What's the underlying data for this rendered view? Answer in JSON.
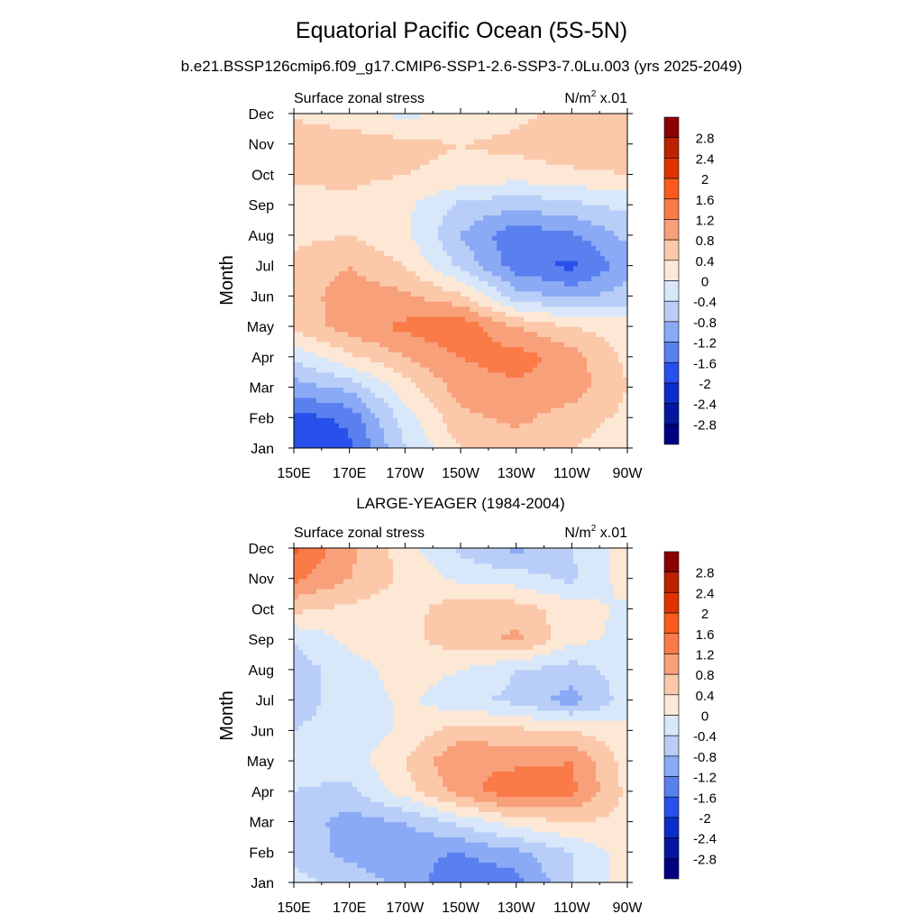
{
  "figure": {
    "title": "Equatorial Pacific Ocean (5S-5N)",
    "subtitle": "b.e21.BSSP126cmip6.f09_g17.CMIP6-SSP1-2.6-SSP3-7.0Lu.003 (yrs 2025-2049)"
  },
  "colorbar": {
    "levels": [
      "2.8",
      "2.4",
      "2",
      "1.6",
      "1.2",
      "0.8",
      "0.4",
      "0",
      "-0.4",
      "-0.8",
      "-1.2",
      "-1.6",
      "-2",
      "-2.4",
      "-2.8"
    ],
    "colors": [
      "#8b0000",
      "#bb2200",
      "#e03400",
      "#fa5a1e",
      "#fa7a48",
      "#f8a07a",
      "#fbc8aa",
      "#fde8d6",
      "#d8e8fa",
      "#b8cef8",
      "#8aaaf5",
      "#5a80f0",
      "#2850ea",
      "#0c2ec8",
      "#03189e",
      "#000080"
    ]
  },
  "chart_data": [
    {
      "type": "heatmap",
      "panel_title": "",
      "left_label": "Surface zonal stress",
      "right_label_base": "N/m",
      "right_label_sup": "2",
      "right_label_rest": " x.01",
      "ylabel": "Month",
      "x_tick_labels": [
        "150E",
        "170E",
        "170W",
        "150W",
        "130W",
        "110W",
        "90W"
      ],
      "y_tick_labels": [
        "Jan",
        "Feb",
        "Mar",
        "Apr",
        "May",
        "Jun",
        "Jul",
        "Aug",
        "Sep",
        "Oct",
        "Nov",
        "Dec"
      ],
      "x_range_deg_east": [
        150,
        270
      ],
      "y_range_month": [
        1,
        12
      ],
      "longitudes": [
        150,
        170,
        190,
        210,
        230,
        250,
        270
      ],
      "months": [
        "Jan",
        "Feb",
        "Mar",
        "Apr",
        "May",
        "Jun",
        "Jul",
        "Aug",
        "Sep",
        "Oct",
        "Nov",
        "Dec"
      ],
      "values": [
        [
          -2.0,
          -1.7,
          -0.4,
          0.4,
          0.6,
          0.4,
          0.2
        ],
        [
          -1.8,
          -1.5,
          -0.2,
          0.7,
          0.9,
          0.6,
          0.3
        ],
        [
          -1.0,
          -0.7,
          0.2,
          1.0,
          1.1,
          1.0,
          0.4
        ],
        [
          -0.3,
          0.3,
          0.8,
          1.2,
          1.4,
          1.0,
          0.3
        ],
        [
          0.5,
          1.0,
          1.3,
          1.5,
          0.8,
          0.4,
          0.2
        ],
        [
          0.6,
          1.0,
          0.9,
          0.5,
          -0.6,
          -0.9,
          -0.6
        ],
        [
          0.5,
          0.8,
          0.4,
          -0.5,
          -1.4,
          -1.7,
          -1.0
        ],
        [
          0.3,
          0.4,
          0.1,
          -0.8,
          -1.5,
          -1.3,
          -0.7
        ],
        [
          0.2,
          0.3,
          0.1,
          -0.5,
          -0.7,
          -0.5,
          -0.3
        ],
        [
          0.5,
          0.5,
          0.4,
          0.3,
          0.2,
          0.3,
          0.4
        ],
        [
          0.8,
          0.7,
          0.5,
          0.4,
          0.5,
          0.7,
          0.7
        ],
        [
          0.3,
          0.1,
          -0.1,
          0.1,
          0.3,
          0.5,
          0.5
        ]
      ]
    },
    {
      "type": "heatmap",
      "panel_title": "LARGE-YEAGER (1984-2004)",
      "left_label": "Surface zonal stress",
      "right_label_base": "N/m",
      "right_label_sup": "2",
      "right_label_rest": " x.01",
      "ylabel": "Month",
      "x_tick_labels": [
        "150E",
        "170E",
        "170W",
        "150W",
        "130W",
        "110W",
        "90W"
      ],
      "y_tick_labels": [
        "Jan",
        "Feb",
        "Mar",
        "Apr",
        "May",
        "Jun",
        "Jul",
        "Aug",
        "Sep",
        "Oct",
        "Nov",
        "Dec"
      ],
      "x_range_deg_east": [
        150,
        270
      ],
      "y_range_month": [
        1,
        12
      ],
      "longitudes": [
        150,
        170,
        190,
        210,
        230,
        250,
        270
      ],
      "months": [
        "Jan",
        "Feb",
        "Mar",
        "Apr",
        "May",
        "Jun",
        "Jul",
        "Aug",
        "Sep",
        "Oct",
        "Nov",
        "Dec"
      ],
      "values": [
        [
          -0.2,
          -0.6,
          -0.9,
          -1.6,
          -1.4,
          -0.4,
          0.2
        ],
        [
          -0.6,
          -0.9,
          -1.1,
          -1.2,
          -0.9,
          -0.4,
          0.2
        ],
        [
          -0.5,
          -1.0,
          -0.8,
          -0.3,
          0.2,
          0.4,
          0.3
        ],
        [
          -0.4,
          -0.5,
          0.2,
          1.0,
          1.5,
          1.3,
          0.3
        ],
        [
          -0.3,
          -0.2,
          0.4,
          1.2,
          1.1,
          1.2,
          0.2
        ],
        [
          -0.4,
          -0.3,
          0.1,
          0.6,
          0.5,
          0.4,
          0.1
        ],
        [
          -0.5,
          -0.3,
          0.1,
          -0.3,
          -0.5,
          -1.0,
          -0.2
        ],
        [
          -0.6,
          -0.2,
          0.2,
          0.0,
          -0.4,
          -0.6,
          -0.2
        ],
        [
          -0.4,
          0.1,
          0.3,
          0.6,
          0.9,
          0.1,
          -0.1
        ],
        [
          0.5,
          0.3,
          0.2,
          0.7,
          0.6,
          0.2,
          -0.1
        ],
        [
          1.3,
          0.8,
          0.3,
          -0.1,
          -0.2,
          -0.5,
          0.2
        ],
        [
          1.7,
          0.9,
          0.2,
          -0.5,
          -0.9,
          -0.4,
          0.2
        ]
      ]
    }
  ]
}
